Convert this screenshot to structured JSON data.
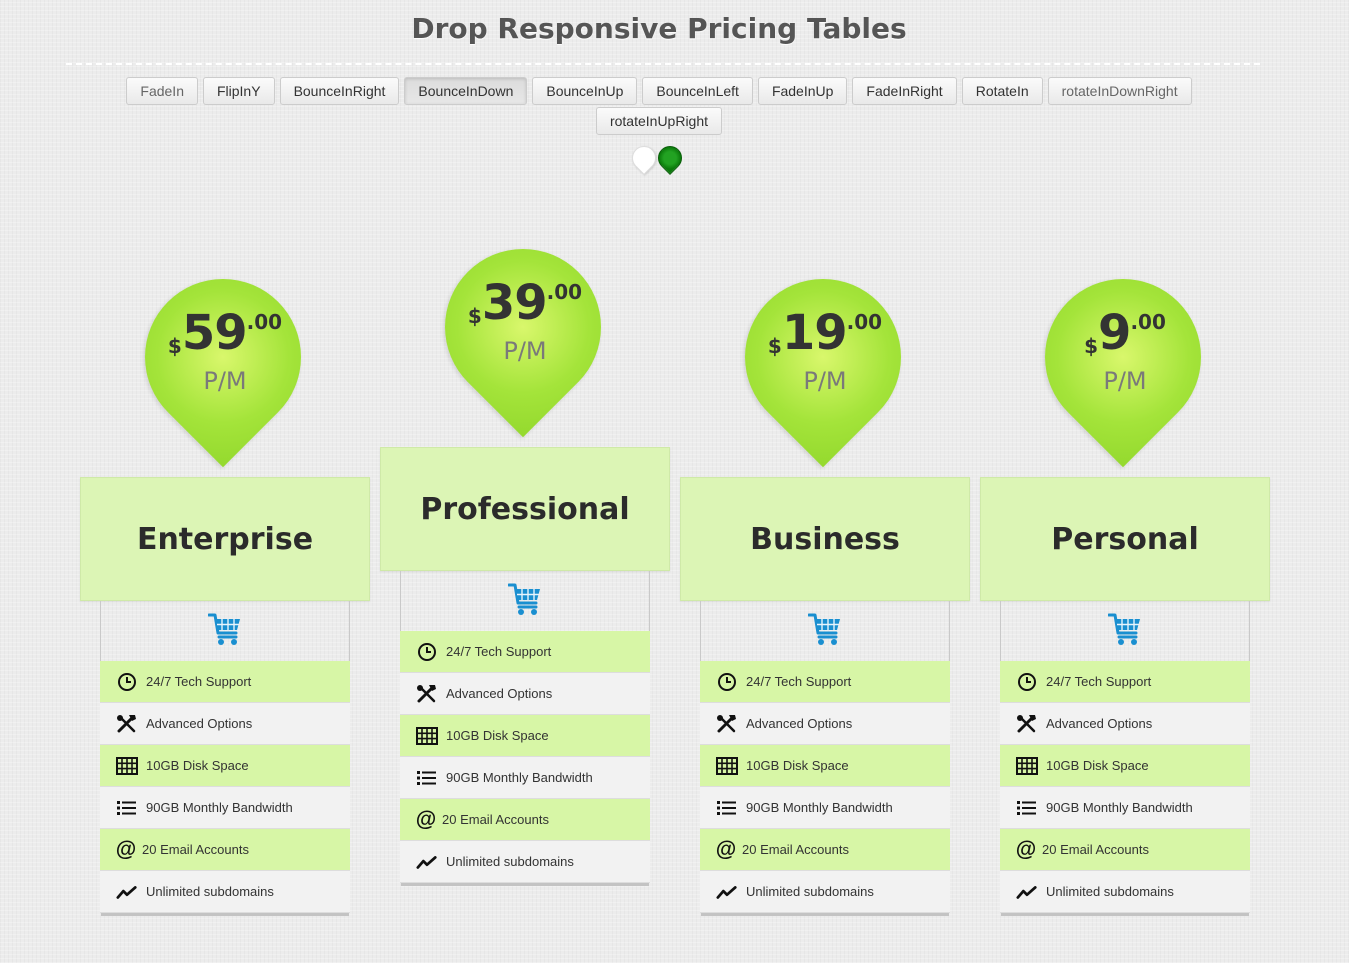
{
  "page": {
    "title": "Drop Responsive Pricing Tables"
  },
  "animation_buttons": [
    {
      "label": "FadeIn",
      "state": "muted"
    },
    {
      "label": "FlipInY",
      "state": "normal"
    },
    {
      "label": "BounceInRight",
      "state": "normal"
    },
    {
      "label": "BounceInDown",
      "state": "active"
    },
    {
      "label": "BounceInUp",
      "state": "normal"
    },
    {
      "label": "BounceInLeft",
      "state": "normal"
    },
    {
      "label": "FadeInUp",
      "state": "normal"
    },
    {
      "label": "FadeInRight",
      "state": "normal"
    },
    {
      "label": "RotateIn",
      "state": "normal"
    },
    {
      "label": "rotateInDownRight",
      "state": "muted"
    },
    {
      "label": "rotateInUpRight",
      "state": "normal"
    }
  ],
  "theme_switch": {
    "options": [
      "white",
      "green"
    ],
    "selected": "green",
    "colors": {
      "white": "#ffffff",
      "green": "#1a8f1a"
    }
  },
  "colors": {
    "drop": "#a4e43a",
    "header": "#dcf5b5",
    "row_alt": "#d7f6a6",
    "cart_icon": "#1a8fd0"
  },
  "plans": [
    {
      "name": "Enterprise",
      "currency": "$",
      "amount": "59",
      "cents": ".00",
      "period": "P/M",
      "featured": false,
      "features": [
        {
          "icon": "clock-icon",
          "text": "24/7 Tech Support"
        },
        {
          "icon": "tools-icon",
          "text": "Advanced Options"
        },
        {
          "icon": "grid-icon",
          "text": "10GB Disk Space"
        },
        {
          "icon": "list-icon",
          "text": "90GB Monthly Bandwidth"
        },
        {
          "icon": "at-icon",
          "text": "20 Email Accounts"
        },
        {
          "icon": "trend-icon",
          "text": "Unlimited subdomains"
        }
      ]
    },
    {
      "name": "Professional",
      "currency": "$",
      "amount": "39",
      "cents": ".00",
      "period": "P/M",
      "featured": true,
      "features": [
        {
          "icon": "clock-icon",
          "text": "24/7 Tech Support"
        },
        {
          "icon": "tools-icon",
          "text": "Advanced Options"
        },
        {
          "icon": "grid-icon",
          "text": "10GB Disk Space"
        },
        {
          "icon": "list-icon",
          "text": "90GB Monthly Bandwidth"
        },
        {
          "icon": "at-icon",
          "text": "20 Email Accounts"
        },
        {
          "icon": "trend-icon",
          "text": "Unlimited subdomains"
        }
      ]
    },
    {
      "name": "Business",
      "currency": "$",
      "amount": "19",
      "cents": ".00",
      "period": "P/M",
      "featured": false,
      "features": [
        {
          "icon": "clock-icon",
          "text": "24/7 Tech Support"
        },
        {
          "icon": "tools-icon",
          "text": "Advanced Options"
        },
        {
          "icon": "grid-icon",
          "text": "10GB Disk Space"
        },
        {
          "icon": "list-icon",
          "text": "90GB Monthly Bandwidth"
        },
        {
          "icon": "at-icon",
          "text": "20 Email Accounts"
        },
        {
          "icon": "trend-icon",
          "text": "Unlimited subdomains"
        }
      ]
    },
    {
      "name": "Personal",
      "currency": "$",
      "amount": "9",
      "cents": ".00",
      "period": "P/M",
      "featured": false,
      "features": [
        {
          "icon": "clock-icon",
          "text": "24/7 Tech Support"
        },
        {
          "icon": "tools-icon",
          "text": "Advanced Options"
        },
        {
          "icon": "grid-icon",
          "text": "10GB Disk Space"
        },
        {
          "icon": "list-icon",
          "text": "90GB Monthly Bandwidth"
        },
        {
          "icon": "at-icon",
          "text": "20 Email Accounts"
        },
        {
          "icon": "trend-icon",
          "text": "Unlimited subdomains"
        }
      ]
    }
  ]
}
